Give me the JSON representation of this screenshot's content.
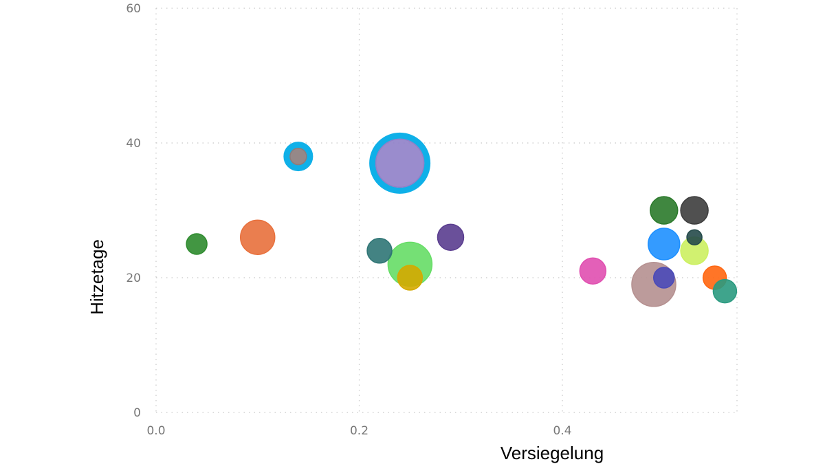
{
  "chart_data": {
    "type": "scatter",
    "xlabel": "Versiegelung",
    "ylabel": "Hitzetage",
    "xlim": [
      0,
      0.57
    ],
    "ylim": [
      0,
      60
    ],
    "x_ticks": [
      "0.0",
      "0.2",
      "0.4"
    ],
    "x_tick_values": [
      0,
      0.2,
      0.4
    ],
    "y_ticks": [
      "0",
      "20",
      "40",
      "60"
    ],
    "y_tick_values": [
      0,
      20,
      40,
      60
    ],
    "grid": true,
    "legend": "none",
    "points": [
      {
        "x": 0.04,
        "y": 25,
        "size": 15,
        "color": "#2e8b2e"
      },
      {
        "x": 0.1,
        "y": 26,
        "size": 25,
        "color": "#e8703c"
      },
      {
        "x": 0.14,
        "y": 38,
        "size": 12,
        "color": "#8a7b7b",
        "highlight": true
      },
      {
        "x": 0.24,
        "y": 37,
        "size": 35,
        "color": "#8f7fc8",
        "highlight": true
      },
      {
        "x": 0.22,
        "y": 24,
        "size": 18,
        "color": "#2f7575"
      },
      {
        "x": 0.25,
        "y": 22,
        "size": 32,
        "color": "#66dd66"
      },
      {
        "x": 0.25,
        "y": 20,
        "size": 18,
        "color": "#d4aa00"
      },
      {
        "x": 0.29,
        "y": 26,
        "size": 19,
        "color": "#5a3d8f"
      },
      {
        "x": 0.43,
        "y": 21,
        "size": 19,
        "color": "#e04fb0"
      },
      {
        "x": 0.49,
        "y": 19,
        "size": 32,
        "color": "#b59090"
      },
      {
        "x": 0.5,
        "y": 30,
        "size": 20,
        "color": "#2b7a2b"
      },
      {
        "x": 0.5,
        "y": 25,
        "size": 23,
        "color": "#1e90ff"
      },
      {
        "x": 0.5,
        "y": 20,
        "size": 15,
        "color": "#4a4ab8"
      },
      {
        "x": 0.53,
        "y": 30,
        "size": 20,
        "color": "#3d3d3d"
      },
      {
        "x": 0.53,
        "y": 26,
        "size": 11,
        "color": "#254a4a"
      },
      {
        "x": 0.53,
        "y": 24,
        "size": 20,
        "color": "#ccf060"
      },
      {
        "x": 0.55,
        "y": 20,
        "size": 17,
        "color": "#ff6610"
      },
      {
        "x": 0.56,
        "y": 18,
        "size": 17,
        "color": "#2a9a80"
      }
    ],
    "highlight_color": "#0fb0e8"
  }
}
